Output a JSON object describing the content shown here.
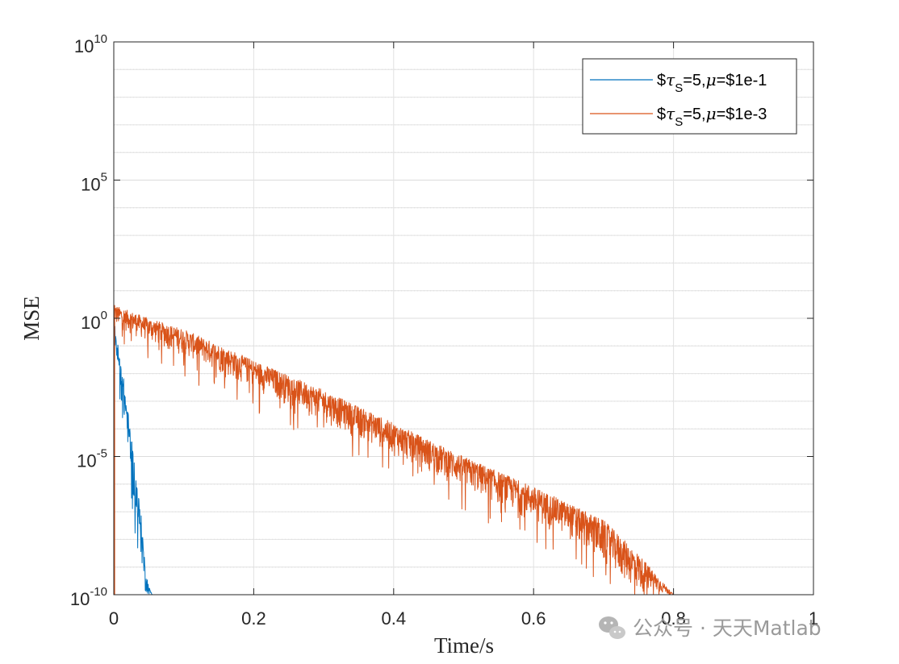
{
  "chart_data": {
    "type": "line",
    "xlabel": "Time/s",
    "ylabel": "MSE",
    "xlim": [
      0,
      1
    ],
    "ylim": [
      1e-10,
      10000000000.0
    ],
    "y_scale": "log",
    "x_ticks": [
      "0",
      "0.2",
      "0.4",
      "0.6",
      "0.8",
      "1"
    ],
    "y_ticks": [
      {
        "base": "10",
        "exp": "10",
        "value": 10000000000.0
      },
      {
        "base": "10",
        "exp": "5",
        "value": 100000.0
      },
      {
        "base": "10",
        "exp": "0",
        "value": 1
      },
      {
        "base": "10",
        "exp": "-5",
        "value": 1e-05
      },
      {
        "base": "10",
        "exp": "-10",
        "value": 1e-10
      }
    ],
    "grid": true,
    "minor_grid": true,
    "legend_position": "top-right",
    "series": [
      {
        "name": "$\\tau_S$=5,$\\mu$=$1e-1",
        "legend_parts": {
          "prefix": "$",
          "sub": "S",
          "mid": "=5,",
          "suffix": "=$1e-1"
        },
        "color": "#0072BD",
        "envelope_x": [
          0,
          0.005,
          0.01,
          0.015,
          0.02,
          0.025,
          0.03,
          0.035,
          0.04,
          0.045,
          0.05,
          0.055,
          1.0
        ],
        "envelope_y_low": [
          0.3,
          0.01,
          0.0015,
          0.0001,
          2e-05,
          1e-06,
          1e-07,
          1e-08,
          1e-09,
          1e-10,
          1e-10,
          1e-10,
          1e-10
        ],
        "envelope_y_high": [
          1.2,
          0.15,
          0.03,
          0.005,
          0.0005,
          5e-05,
          5e-06,
          5e-07,
          5e-08,
          1e-09,
          2e-10,
          1e-10,
          1e-10
        ]
      },
      {
        "name": "$\\tau_S$=5,$\\mu$=$1e-3",
        "legend_parts": {
          "prefix": "$",
          "sub": "S",
          "mid": "=5,",
          "suffix": "=$1e-3"
        },
        "color": "#D95319",
        "envelope_x": [
          0,
          0.05,
          0.1,
          0.2,
          0.3,
          0.4,
          0.5,
          0.6,
          0.65,
          0.7,
          0.75,
          0.8,
          1.0
        ],
        "envelope_y_low": [
          0.5,
          0.12,
          0.04,
          0.0025,
          0.00016,
          1e-05,
          6e-07,
          4e-08,
          1e-08,
          1e-09,
          1e-10,
          1e-10,
          1e-10
        ],
        "envelope_y_high": [
          3.0,
          1.0,
          0.4,
          0.03,
          0.0025,
          0.00016,
          1e-05,
          8e-07,
          2e-07,
          5e-08,
          3e-09,
          1e-10,
          1e-10
        ]
      }
    ]
  },
  "watermark": {
    "text": "公众号 · 天天Matlab",
    "icon": "wechat-icon"
  }
}
